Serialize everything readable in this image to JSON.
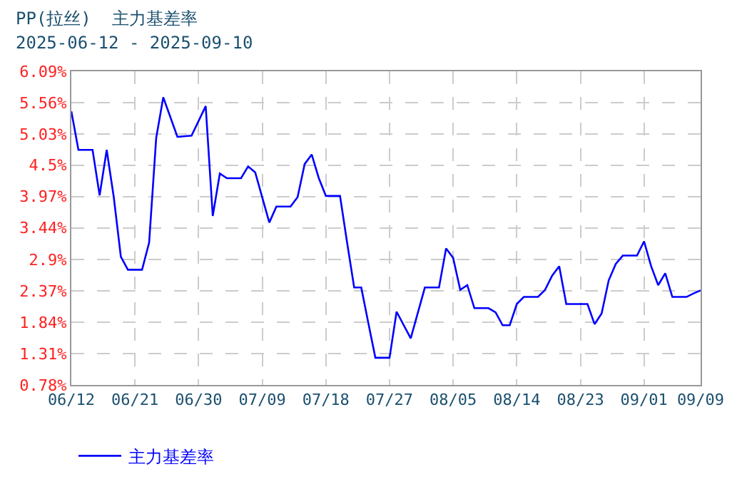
{
  "chart_data": {
    "type": "line",
    "title": "PP(拉丝)  主力基差率",
    "subtitle": "2025-06-12 - 2025-09-10",
    "x": [
      "2025-06-12",
      "2025-06-13",
      "2025-06-15",
      "2025-06-16",
      "2025-06-17",
      "2025-06-18",
      "2025-06-19",
      "2025-06-20",
      "2025-06-22",
      "2025-06-23",
      "2025-06-24",
      "2025-06-25",
      "2025-06-27",
      "2025-06-29",
      "2025-07-01",
      "2025-07-02",
      "2025-07-03",
      "2025-07-04",
      "2025-07-06",
      "2025-07-07",
      "2025-07-08",
      "2025-07-10",
      "2025-07-11",
      "2025-07-13",
      "2025-07-14",
      "2025-07-15",
      "2025-07-16",
      "2025-07-17",
      "2025-07-18",
      "2025-07-20",
      "2025-07-21",
      "2025-07-22",
      "2025-07-23",
      "2025-07-24",
      "2025-07-25",
      "2025-07-27",
      "2025-07-28",
      "2025-07-30",
      "2025-08-01",
      "2025-08-03",
      "2025-08-04",
      "2025-08-05",
      "2025-08-06",
      "2025-08-07",
      "2025-08-08",
      "2025-08-10",
      "2025-08-11",
      "2025-08-12",
      "2025-08-13",
      "2025-08-14",
      "2025-08-15",
      "2025-08-17",
      "2025-08-18",
      "2025-08-19",
      "2025-08-20",
      "2025-08-21",
      "2025-08-24",
      "2025-08-25",
      "2025-08-26",
      "2025-08-27",
      "2025-08-28",
      "2025-08-29",
      "2025-08-31",
      "2025-09-01",
      "2025-09-02",
      "2025-09-03",
      "2025-09-04",
      "2025-09-05",
      "2025-09-07",
      "2025-09-08",
      "2025-09-09"
    ],
    "series": [
      {
        "name": "主力基差率",
        "color": "#0000ff",
        "values": [
          5.41,
          4.76,
          4.76,
          3.99,
          4.76,
          3.96,
          2.95,
          2.73,
          2.73,
          3.19,
          4.96,
          5.65,
          4.98,
          5.0,
          5.5,
          3.64,
          4.36,
          4.28,
          4.28,
          4.48,
          4.38,
          3.53,
          3.8,
          3.8,
          3.96,
          4.52,
          4.68,
          4.28,
          3.98,
          3.98,
          3.19,
          2.43,
          2.43,
          1.83,
          1.24,
          1.24,
          2.02,
          1.57,
          2.43,
          2.43,
          3.09,
          2.93,
          2.39,
          2.47,
          2.08,
          2.08,
          2.01,
          1.79,
          1.79,
          2.15,
          2.27,
          2.27,
          2.39,
          2.63,
          2.79,
          2.15,
          2.15,
          1.81,
          1.99,
          2.55,
          2.83,
          2.97,
          2.97,
          3.21,
          2.79,
          2.47,
          2.67,
          2.27,
          2.27,
          2.33,
          2.38
        ]
      }
    ],
    "xlim": [
      "2025-06-12",
      "2025-09-09"
    ],
    "xticks": [
      {
        "value": "2025-06-12",
        "label": "06/12"
      },
      {
        "value": "2025-06-21",
        "label": "06/21"
      },
      {
        "value": "2025-06-30",
        "label": "06/30"
      },
      {
        "value": "2025-07-09",
        "label": "07/09"
      },
      {
        "value": "2025-07-18",
        "label": "07/18"
      },
      {
        "value": "2025-07-27",
        "label": "07/27"
      },
      {
        "value": "2025-08-05",
        "label": "08/05"
      },
      {
        "value": "2025-08-14",
        "label": "08/14"
      },
      {
        "value": "2025-08-23",
        "label": "08/23"
      },
      {
        "value": "2025-09-01",
        "label": "09/01"
      },
      {
        "value": "2025-09-09",
        "label": "09/09"
      }
    ],
    "ylim": [
      0.78,
      6.09
    ],
    "yticks": [
      {
        "value": 0.78,
        "label": "0.78%"
      },
      {
        "value": 1.31,
        "label": "1.31%"
      },
      {
        "value": 1.84,
        "label": "1.84%"
      },
      {
        "value": 2.37,
        "label": "2.37%"
      },
      {
        "value": 2.9,
        "label": "2.9%"
      },
      {
        "value": 3.44,
        "label": "3.44%"
      },
      {
        "value": 3.97,
        "label": "3.97%"
      },
      {
        "value": 4.5,
        "label": "4.5%"
      },
      {
        "value": 5.03,
        "label": "5.03%"
      },
      {
        "value": 5.56,
        "label": "5.56%"
      },
      {
        "value": 6.09,
        "label": "6.09%"
      }
    ],
    "grid": true,
    "legend": "bottom",
    "marker": "none",
    "line_style": "solid"
  }
}
